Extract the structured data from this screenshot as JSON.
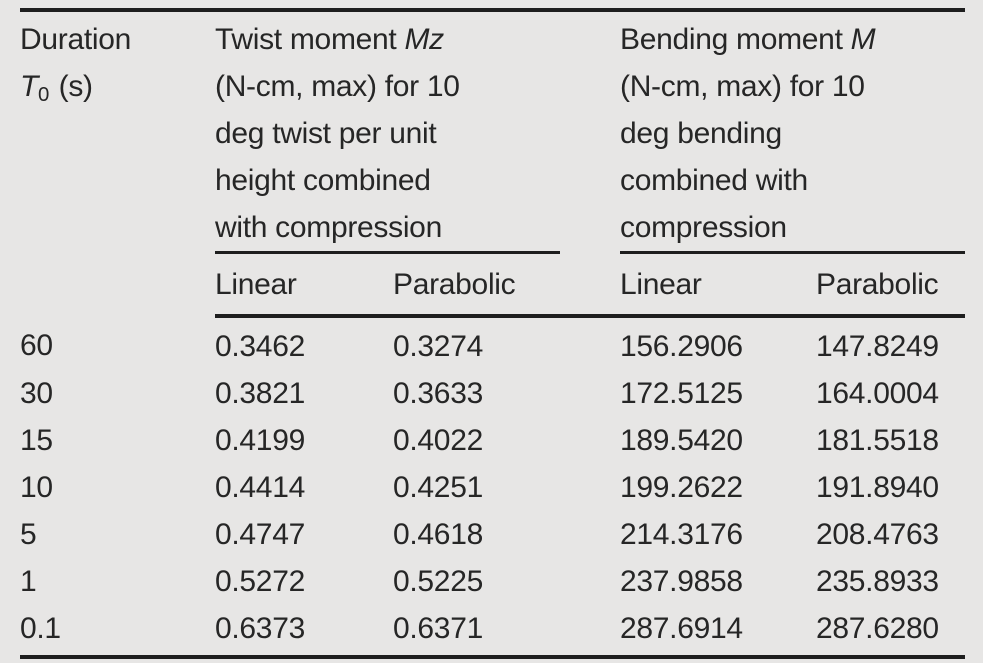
{
  "table": {
    "header": {
      "duration": {
        "line1": "Duration",
        "symbol": "T",
        "subscript": "0",
        "unit": "(s)"
      },
      "twist_group": {
        "title_prefix": "Twist moment ",
        "title_symbol": "Mz",
        "lines": [
          "(N-cm, max) for 10",
          "deg twist per unit",
          "height combined",
          "with compression"
        ]
      },
      "bending_group": {
        "title_prefix": "Bending moment ",
        "title_symbol": "M",
        "lines": [
          "(N-cm, max) for 10",
          "deg bending",
          "combined with",
          "compression"
        ]
      },
      "sub_columns": [
        "Linear",
        "Parabolic",
        "Linear",
        "Parabolic"
      ]
    },
    "rows": [
      {
        "duration": "60",
        "twist_linear": "0.3462",
        "twist_parabolic": "0.3274",
        "bending_linear": "156.2906",
        "bending_parabolic": "147.8249"
      },
      {
        "duration": "30",
        "twist_linear": "0.3821",
        "twist_parabolic": "0.3633",
        "bending_linear": "172.5125",
        "bending_parabolic": "164.0004"
      },
      {
        "duration": "15",
        "twist_linear": "0.4199",
        "twist_parabolic": "0.4022",
        "bending_linear": "189.5420",
        "bending_parabolic": "181.5518"
      },
      {
        "duration": "10",
        "twist_linear": "0.4414",
        "twist_parabolic": "0.4251",
        "bending_linear": "199.2622",
        "bending_parabolic": "191.8940"
      },
      {
        "duration": "5",
        "twist_linear": "0.4747",
        "twist_parabolic": "0.4618",
        "bending_linear": "214.3176",
        "bending_parabolic": "208.4763"
      },
      {
        "duration": "1",
        "twist_linear": "0.5272",
        "twist_parabolic": "0.5225",
        "bending_linear": "237.9858",
        "bending_parabolic": "235.8933"
      },
      {
        "duration": "0.1",
        "twist_linear": "0.6373",
        "twist_parabolic": "0.6371",
        "bending_linear": "287.6914",
        "bending_parabolic": "287.6280"
      }
    ],
    "colors": {
      "background": "#e7e6e5",
      "text": "#262626",
      "rule": "#1e1e1e"
    }
  }
}
